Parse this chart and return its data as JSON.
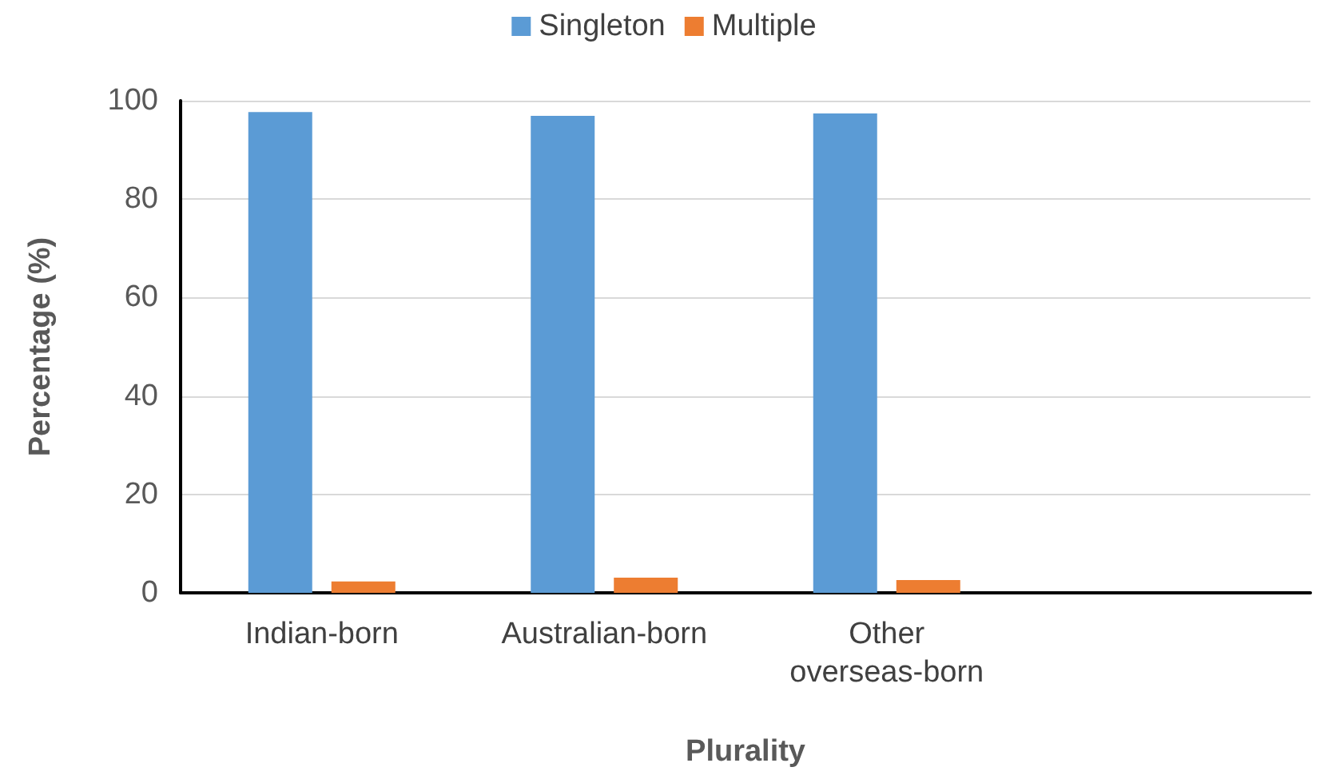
{
  "chart_data": {
    "type": "bar",
    "xlabel": "Plurality",
    "ylabel": "Percentage (%)",
    "categories": [
      "Indian-born",
      "Australian-born",
      "Other\noverseas-born",
      null
    ],
    "series": [
      {
        "name": "Singleton",
        "color": "#5b9bd5",
        "values": [
          97.7,
          96.9,
          97.4,
          null
        ]
      },
      {
        "name": "Multiple",
        "color": "#ed7d31",
        "values": [
          2.3,
          3.1,
          2.6,
          null
        ]
      }
    ],
    "ylim": [
      0,
      100
    ],
    "yticks": [
      0,
      20,
      40,
      60,
      80,
      100
    ],
    "grid": "y",
    "legend": "top"
  }
}
